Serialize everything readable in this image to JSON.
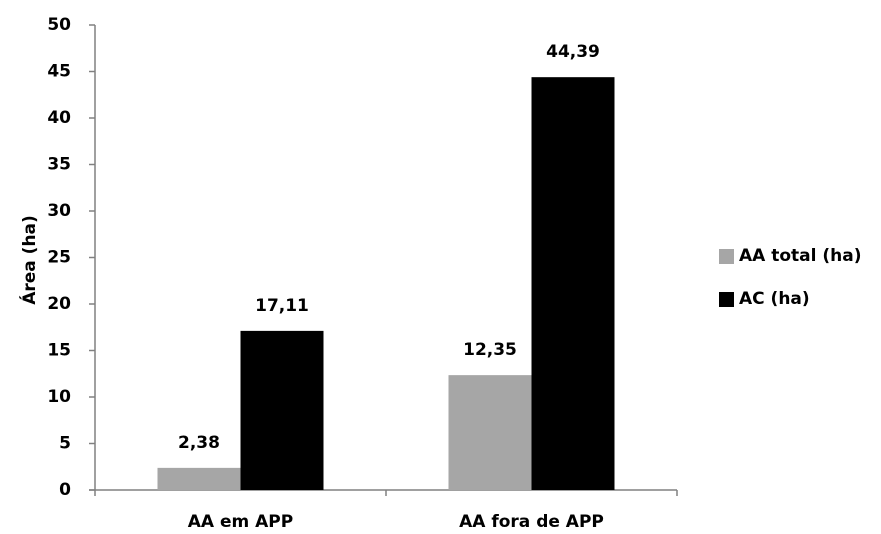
{
  "chart_data": {
    "type": "bar",
    "title": "",
    "xlabel": "",
    "ylabel": "Área (ha)",
    "ylim": [
      0,
      50
    ],
    "yticks": [
      "0",
      "5",
      "10",
      "15",
      "20",
      "25",
      "30",
      "35",
      "40",
      "45",
      "50"
    ],
    "categories": [
      "AA em APP",
      "AA fora de APP"
    ],
    "series": [
      {
        "name": "AA total (ha)",
        "color": "#a6a6a6",
        "values": [
          2.38,
          12.35
        ],
        "labels": [
          "2,38",
          "12,35"
        ]
      },
      {
        "name": "AC (ha)",
        "color": "#000000",
        "values": [
          17.11,
          44.39
        ],
        "labels": [
          "17,11",
          "44,39"
        ]
      }
    ],
    "legend_position": "right",
    "grid": false
  }
}
